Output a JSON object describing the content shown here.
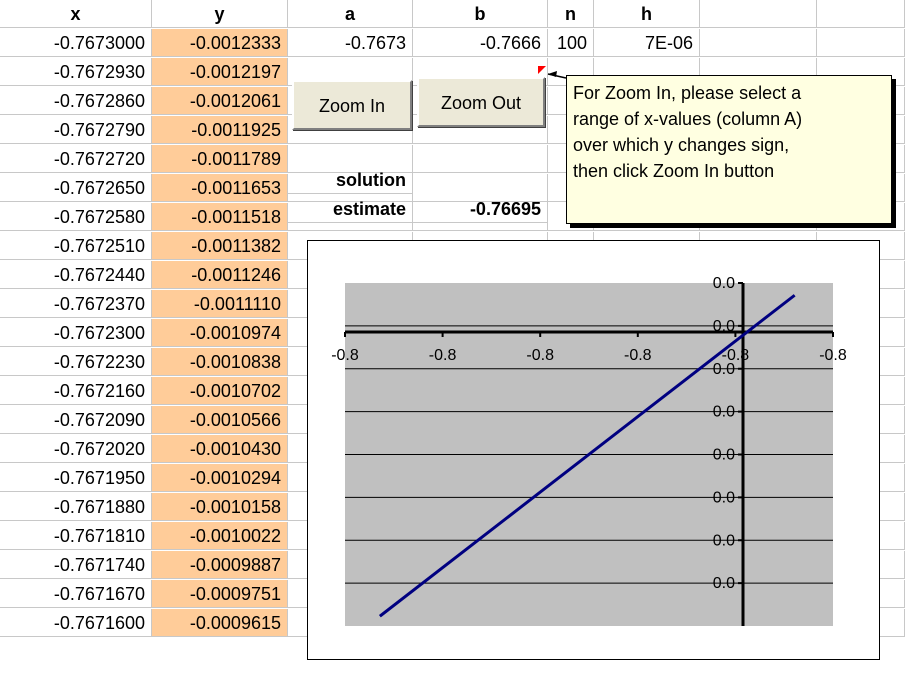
{
  "headers": {
    "x": "x",
    "y": "y",
    "a": "a",
    "b": "b",
    "n": "n",
    "h": "h"
  },
  "params": {
    "a": "-0.7673",
    "b": "-0.7666",
    "n": "100",
    "h": "7E-06"
  },
  "buttons": {
    "zoom_in": "Zoom In",
    "zoom_out": "Zoom Out"
  },
  "labels": {
    "solution": "solution",
    "estimate": "estimate",
    "estimate_value": "-0.76695"
  },
  "comment": {
    "lines": [
      "For Zoom In, please select a",
      "range of x-values (column A)",
      "over which y changes sign,",
      "then click Zoom In button"
    ]
  },
  "rows": [
    {
      "x": "-0.7673000",
      "y": "-0.0012333"
    },
    {
      "x": "-0.7672930",
      "y": "-0.0012197"
    },
    {
      "x": "-0.7672860",
      "y": "-0.0012061"
    },
    {
      "x": "-0.7672790",
      "y": "-0.0011925"
    },
    {
      "x": "-0.7672720",
      "y": "-0.0011789"
    },
    {
      "x": "-0.7672650",
      "y": "-0.0011653"
    },
    {
      "x": "-0.7672580",
      "y": "-0.0011518"
    },
    {
      "x": "-0.7672510",
      "y": "-0.0011382"
    },
    {
      "x": "-0.7672440",
      "y": "-0.0011246"
    },
    {
      "x": "-0.7672370",
      "y": "-0.0011110"
    },
    {
      "x": "-0.7672300",
      "y": "-0.0010974"
    },
    {
      "x": "-0.7672230",
      "y": "-0.0010838"
    },
    {
      "x": "-0.7672160",
      "y": "-0.0010702"
    },
    {
      "x": "-0.7672090",
      "y": "-0.0010566"
    },
    {
      "x": "-0.7672020",
      "y": "-0.0010430"
    },
    {
      "x": "-0.7671950",
      "y": "-0.0010294"
    },
    {
      "x": "-0.7671880",
      "y": "-0.0010158"
    },
    {
      "x": "-0.7671810",
      "y": "-0.0010022"
    },
    {
      "x": "-0.7671740",
      "y": "-0.0009887"
    },
    {
      "x": "-0.7671670",
      "y": "-0.0009751"
    },
    {
      "x": "-0.7671600",
      "y": "-0.0009615"
    }
  ],
  "chart_data": {
    "type": "line",
    "x_tick_labels": [
      "-0.8",
      "-0.8",
      "-0.8",
      "-0.8",
      "-0.8",
      "-0.8"
    ],
    "y_tick_labels": [
      "0.0",
      "0.0",
      "0.0",
      "0.0",
      "0.0",
      "0.0",
      "0.0",
      "0.0"
    ],
    "xlim": [
      -0.7673,
      -0.7666
    ],
    "ylim": [
      -0.0012,
      0.0002
    ],
    "series": [
      {
        "color": "#000080",
        "x": [
          -0.76725,
          -0.766655
        ],
        "y": [
          -0.00116,
          0.00015
        ]
      }
    ],
    "plot_area_color": "#c0c0c0",
    "grid": true
  }
}
